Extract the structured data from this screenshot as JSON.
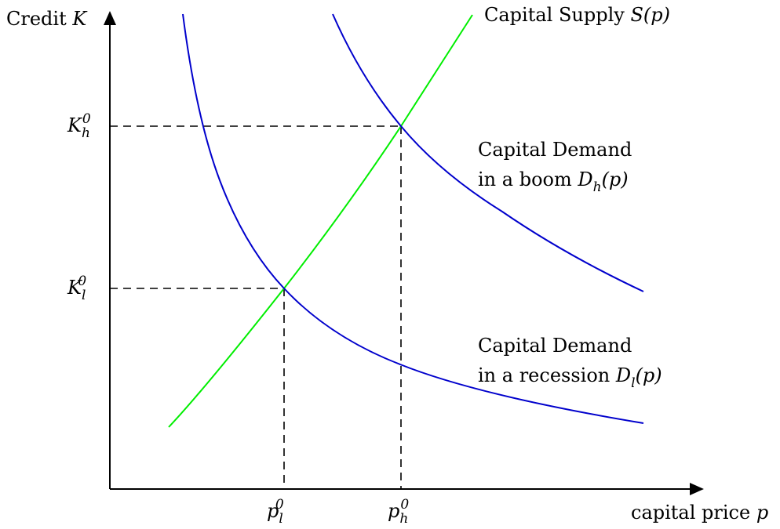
{
  "axes": {
    "y_label": "Credit",
    "y_var": "K",
    "x_label": "capital price",
    "x_var": "p"
  },
  "curves": {
    "supply": {
      "label": "Capital Supply",
      "func": "S(p)",
      "color": "#00ee00"
    },
    "demand_boom": {
      "label_line1": "Capital Demand",
      "label_line2": "in a boom",
      "func": "D_h(p)",
      "color": "#0000cc"
    },
    "demand_recession": {
      "label_line1": "Capital Demand",
      "label_line2": "in a recession",
      "func": "D_l(p)",
      "color": "#0000cc"
    }
  },
  "equilibria": {
    "high": {
      "k_label": "K_h^0",
      "p_label": "p_h^0"
    },
    "low": {
      "k_label": "K_l^0",
      "p_label": "p_l^0"
    }
  }
}
